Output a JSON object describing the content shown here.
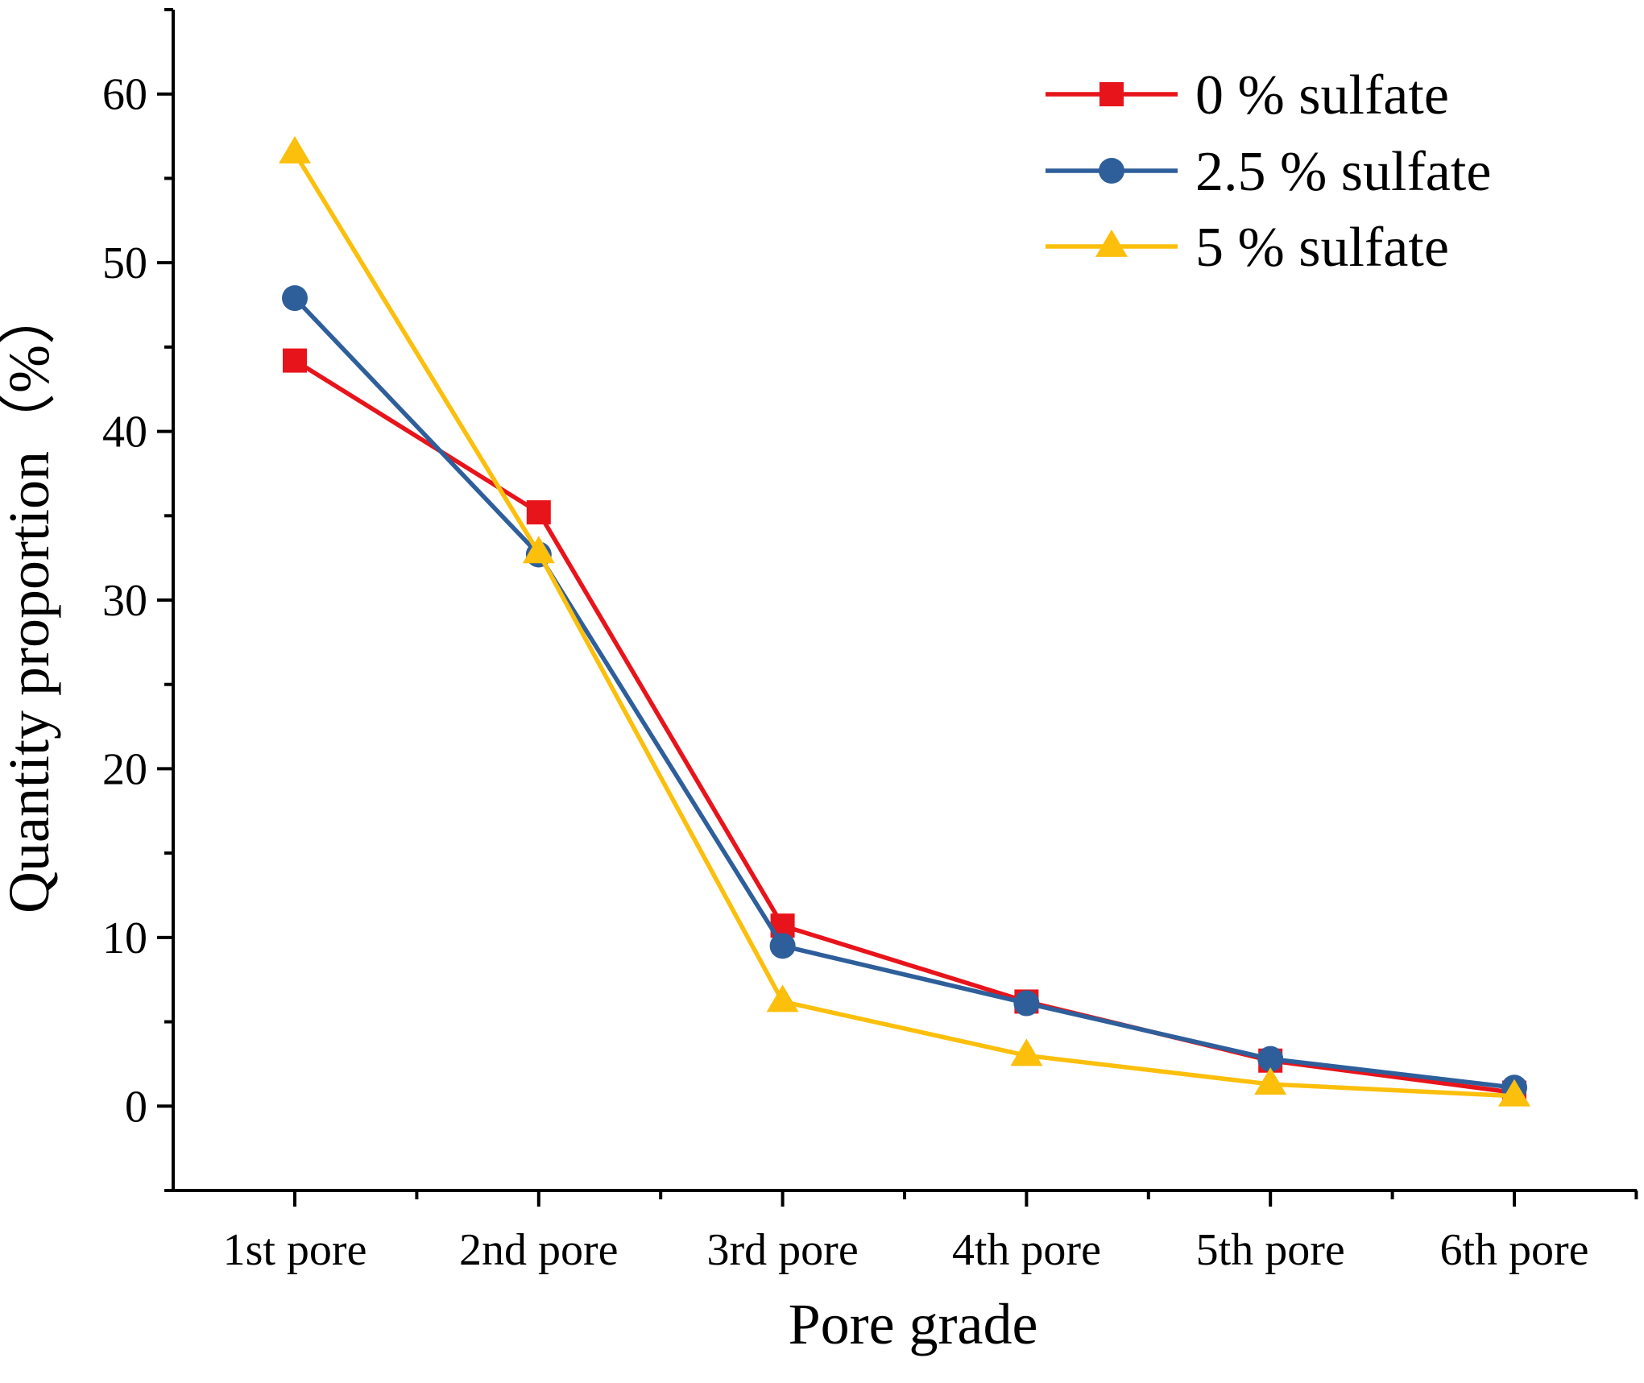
{
  "chart_data": {
    "type": "line",
    "title": "",
    "xlabel": "Pore grade",
    "ylabel": "Quantity proportion（%）",
    "categories": [
      "1st pore",
      "2nd pore",
      "3rd pore",
      "4th pore",
      "5th pore",
      "6th pore"
    ],
    "ylim": [
      -5,
      65
    ],
    "yticks": [
      0,
      10,
      20,
      30,
      40,
      50,
      60
    ],
    "legend_position": "top-right",
    "grid": false,
    "series": [
      {
        "name": "0 % sulfate",
        "marker": "square",
        "color": "#e8141b",
        "values": [
          44.2,
          35.2,
          10.7,
          6.2,
          2.7,
          0.8
        ]
      },
      {
        "name": "2.5 % sulfate",
        "marker": "circle",
        "color": "#2e5f9b",
        "values": [
          47.9,
          32.7,
          9.5,
          6.1,
          2.8,
          1.1
        ]
      },
      {
        "name": "5 % sulfate",
        "marker": "triangle",
        "color": "#fbbf0c",
        "values": [
          56.5,
          32.8,
          6.2,
          3.0,
          1.3,
          0.6
        ]
      }
    ]
  }
}
